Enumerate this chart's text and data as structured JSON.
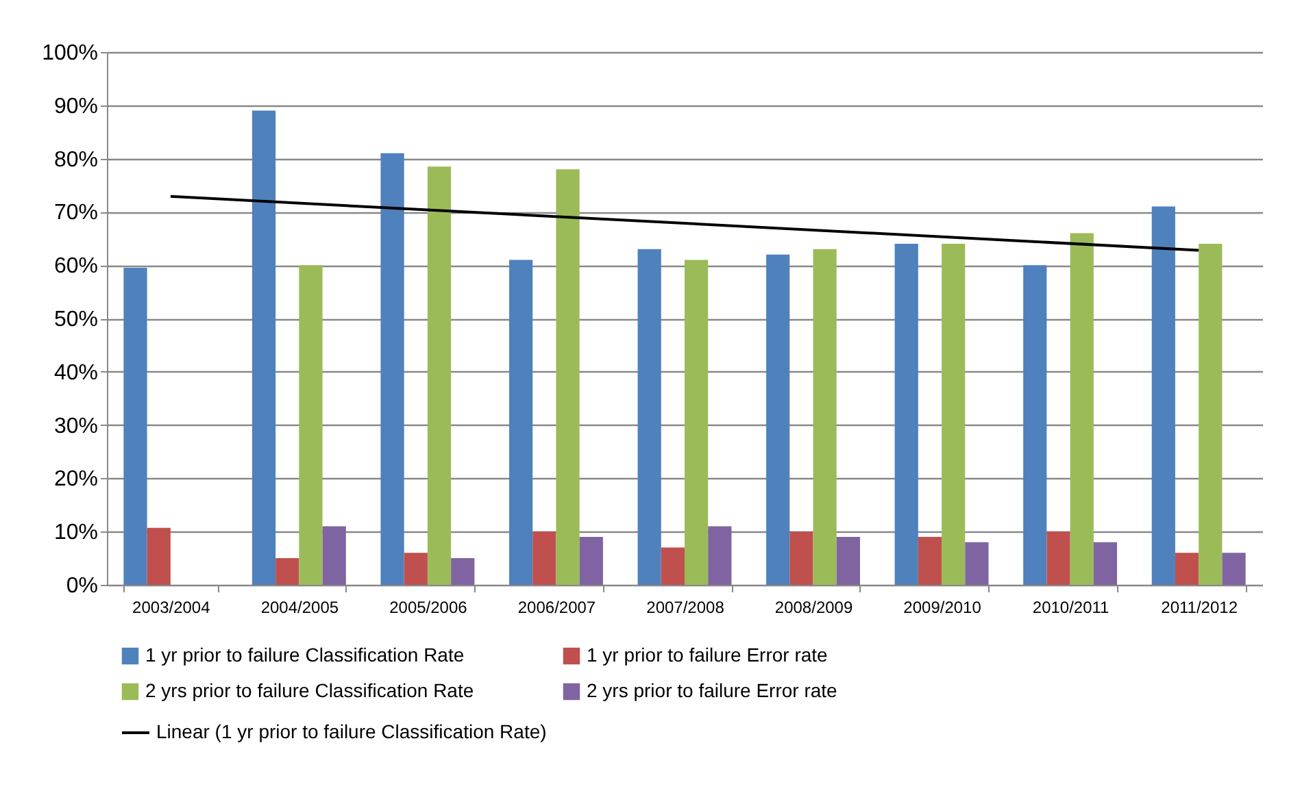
{
  "chart_data": {
    "type": "bar",
    "categories": [
      "2003/2004",
      "2004/2005",
      "2005/2006",
      "2006/2007",
      "2007/2008",
      "2008/2009",
      "2009/2010",
      "2010/2011",
      "2011/2012"
    ],
    "series": [
      {
        "name": "1 yr prior to failure Classification Rate",
        "color": "#4f81bd",
        "values": [
          59.5,
          89,
          81,
          61,
          63,
          62,
          64,
          60,
          71
        ]
      },
      {
        "name": "1 yr prior to failure Error rate",
        "color": "#c0504d",
        "values": [
          10.7,
          5,
          6,
          10,
          7,
          10,
          9,
          10,
          6
        ]
      },
      {
        "name": "2 yrs  prior to failure Classification Rate",
        "color": "#9bbb59",
        "values": [
          null,
          60,
          78.5,
          78,
          61,
          63,
          64,
          66,
          64
        ]
      },
      {
        "name": "2 yrs  prior to failure Error rate",
        "color": "#8064a2",
        "values": [
          null,
          11,
          5,
          9,
          11,
          9,
          8,
          8,
          6
        ]
      },
      {
        "name": "Linear (1 yr prior to failure Classification Rate)",
        "type": "line",
        "color": "#000000",
        "x": [
          "2003/2004",
          "2011/2012"
        ],
        "values": [
          72.9,
          62.8
        ]
      }
    ],
    "ylim": [
      0,
      100
    ],
    "yticks": [
      {
        "value": 0,
        "label": "0%"
      },
      {
        "value": 10,
        "label": "10%"
      },
      {
        "value": 20,
        "label": "20%"
      },
      {
        "value": 30,
        "label": "30%"
      },
      {
        "value": 40,
        "label": "40%"
      },
      {
        "value": 50,
        "label": "50%"
      },
      {
        "value": 60,
        "label": "60%"
      },
      {
        "value": 70,
        "label": "70%"
      },
      {
        "value": 80,
        "label": "80%"
      },
      {
        "value": 90,
        "label": "90%"
      },
      {
        "value": 100,
        "label": "100%"
      }
    ],
    "grid": "y",
    "legend": "bottom"
  }
}
